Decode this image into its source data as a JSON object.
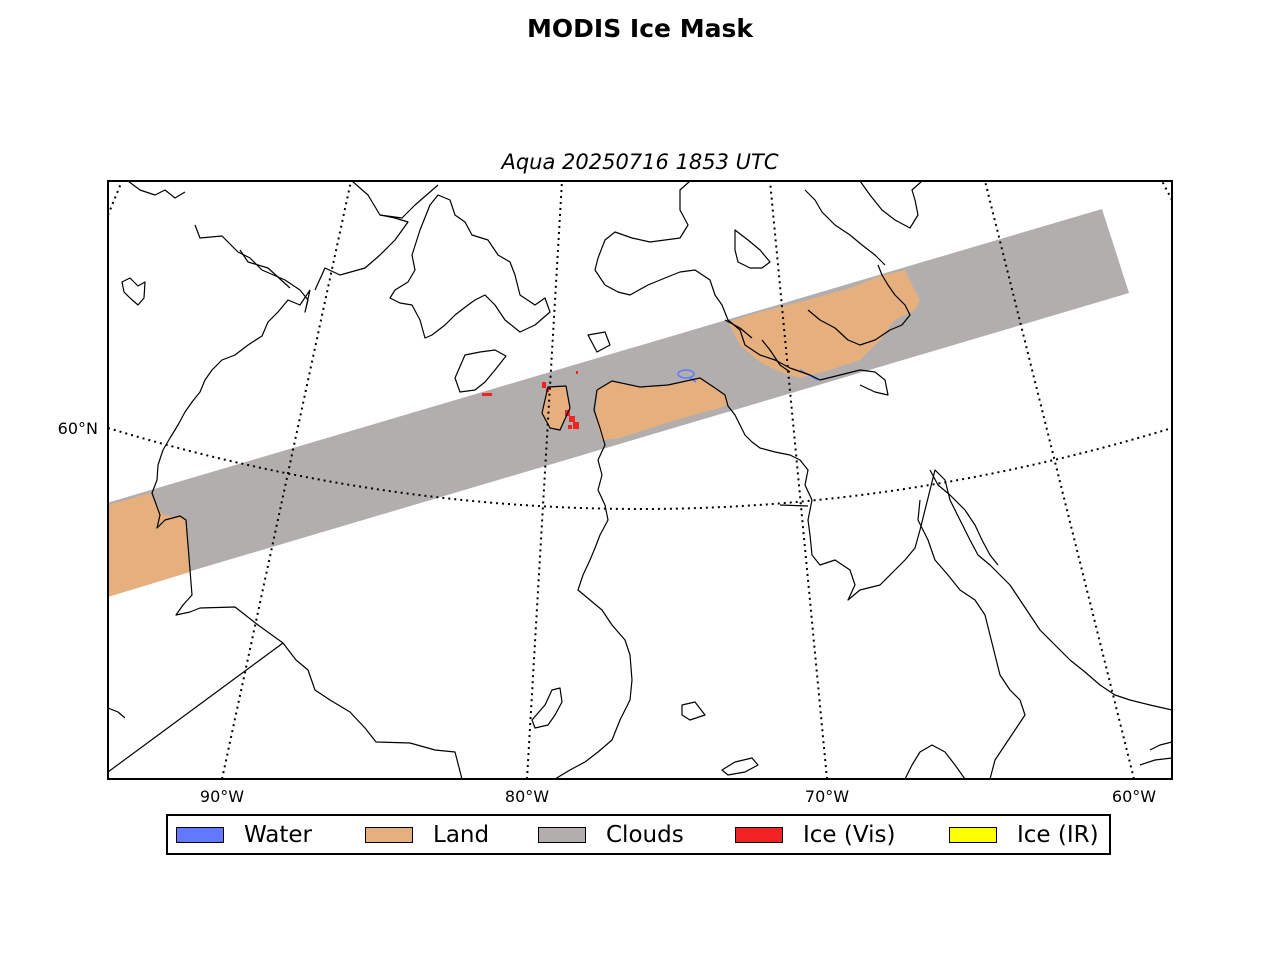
{
  "figure": {
    "title": "MODIS Ice Mask",
    "subtitle": "Aqua 20250716 1853 UTC"
  },
  "map": {
    "projection": "lambert-conformal",
    "meridian_labels": [
      "90°W",
      "80°W",
      "70°W",
      "60°W"
    ],
    "parallel_labels": [
      "60°N"
    ],
    "gridline_style": "dotted",
    "swath": {
      "satellite": "Aqua",
      "dominant_class": "Clouds",
      "orientation": "west-southwest to east-northeast"
    }
  },
  "legend": {
    "items": [
      {
        "label": "Water",
        "color": "#6079ff"
      },
      {
        "label": "Land",
        "color": "#e6b07e"
      },
      {
        "label": "Clouds",
        "color": "#b1aead"
      },
      {
        "label": "Ice (Vis)",
        "color": "#f02222"
      },
      {
        "label": "Ice (IR)",
        "color": "#ffff00"
      }
    ]
  }
}
